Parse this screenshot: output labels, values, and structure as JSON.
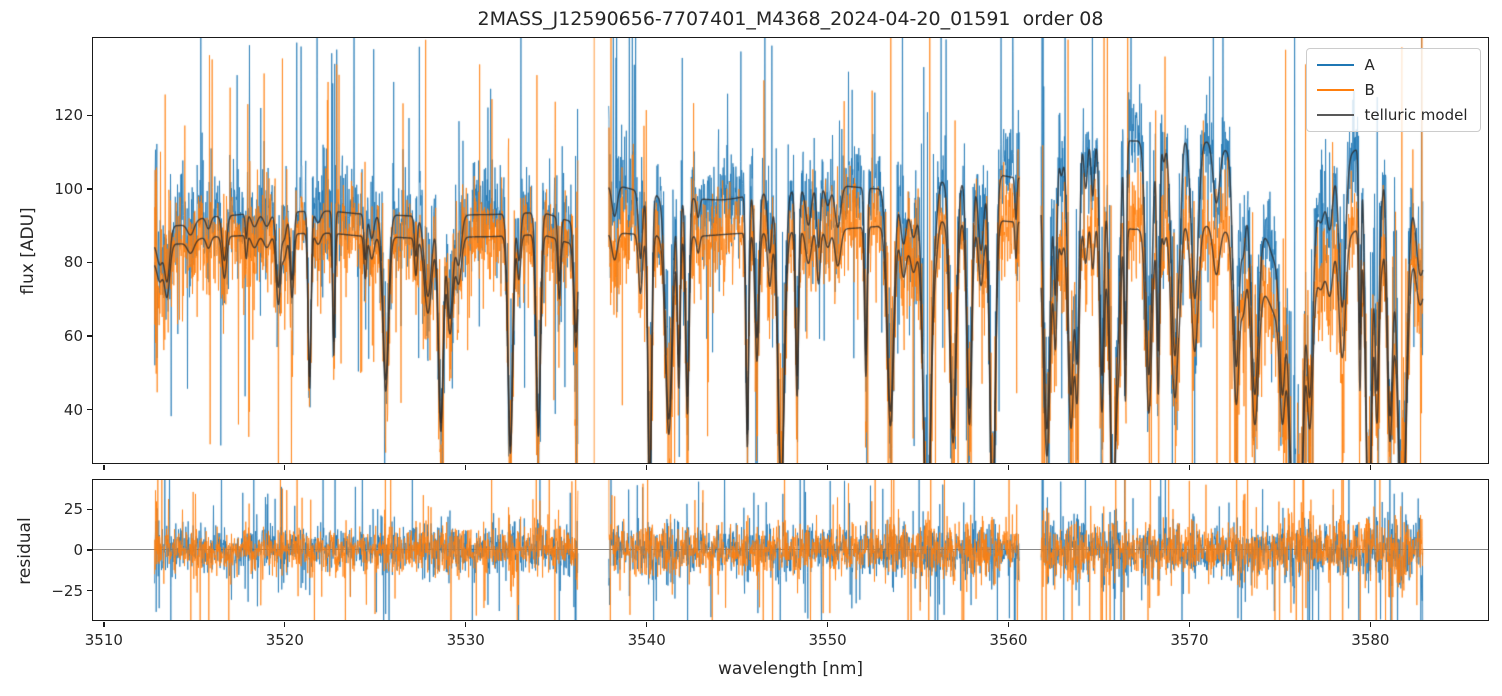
{
  "chart_data": {
    "type": "line",
    "title": "2MASS_J12590656-7707401_M4368_2024-04-20_01591  order 08",
    "xlabel": "wavelength [nm]",
    "xlim": [
      3509.4,
      3586.5
    ],
    "xticks": [
      3510,
      3520,
      3530,
      3540,
      3550,
      3560,
      3570,
      3580
    ],
    "panels": [
      {
        "id": "flux",
        "ylabel": "flux [ADU]",
        "ylim": [
          25.5,
          141
        ],
        "yticks": [
          40,
          60,
          80,
          100,
          120
        ],
        "zero_line": false
      },
      {
        "id": "residual",
        "ylabel": "residual",
        "ylim": [
          -43,
          43
        ],
        "yticks": [
          -25,
          0,
          25
        ],
        "zero_line": true
      }
    ],
    "legend": {
      "position": "upper right",
      "entries": [
        {
          "label": "A",
          "color": "#1f77b4"
        },
        {
          "label": "B",
          "color": "#ff7f0e"
        },
        {
          "label": "telluric model",
          "color": "#595959"
        }
      ]
    },
    "series": [
      {
        "name": "A",
        "kind": "noisy spectrum",
        "color": "#1f77b4",
        "opacity": 0.75
      },
      {
        "name": "B",
        "kind": "noisy spectrum",
        "color": "#ff7f0e",
        "opacity": 0.75
      },
      {
        "name": "telluric model",
        "kind": "smooth model, two traces (A-scaled and B-scaled)",
        "color": "#2a2a2a",
        "opacity": 0.8
      }
    ],
    "segments_nm": [
      [
        3512.8,
        3536.2
      ],
      [
        3537.9,
        3560.6
      ],
      [
        3561.8,
        3582.9
      ]
    ],
    "telluric_continuum_A": [
      [
        3512.8,
        85
      ],
      [
        3514,
        90
      ],
      [
        3516,
        92.5
      ],
      [
        3519,
        93.5
      ],
      [
        3522,
        94
      ],
      [
        3525,
        93
      ],
      [
        3528,
        92.5
      ],
      [
        3531,
        93
      ],
      [
        3534,
        93.5
      ],
      [
        3536.2,
        91
      ],
      [
        3537.9,
        101
      ],
      [
        3541,
        98
      ],
      [
        3544,
        97
      ],
      [
        3547,
        99
      ],
      [
        3550,
        101
      ],
      [
        3553,
        100
      ],
      [
        3556,
        102
      ],
      [
        3559,
        104
      ],
      [
        3560.6,
        103
      ],
      [
        3561.8,
        108
      ],
      [
        3563,
        116
      ],
      [
        3565,
        114
      ],
      [
        3567,
        113
      ],
      [
        3569,
        115
      ],
      [
        3571,
        113
      ],
      [
        3572.5,
        110
      ],
      [
        3574,
        88
      ],
      [
        3575,
        78
      ],
      [
        3576,
        86
      ],
      [
        3577,
        100
      ],
      [
        3578,
        108
      ],
      [
        3580,
        112
      ],
      [
        3582,
        105
      ],
      [
        3582.9,
        80
      ]
    ],
    "telluric_continuum_B": [
      [
        3512.8,
        80
      ],
      [
        3514,
        85
      ],
      [
        3516,
        87
      ],
      [
        3519,
        87.5
      ],
      [
        3522,
        88
      ],
      [
        3525,
        87
      ],
      [
        3528,
        86.5
      ],
      [
        3531,
        87
      ],
      [
        3534,
        87.5
      ],
      [
        3536.2,
        85
      ],
      [
        3537.9,
        88
      ],
      [
        3542,
        87
      ],
      [
        3546,
        88
      ],
      [
        3550,
        89
      ],
      [
        3554,
        90
      ],
      [
        3558,
        92
      ],
      [
        3560.6,
        91
      ],
      [
        3561.8,
        85
      ],
      [
        3563,
        92
      ],
      [
        3565,
        91
      ],
      [
        3567,
        89
      ],
      [
        3569,
        91
      ],
      [
        3571,
        90
      ],
      [
        3572.5,
        88
      ],
      [
        3574,
        72
      ],
      [
        3575,
        64
      ],
      [
        3576,
        70
      ],
      [
        3577,
        80
      ],
      [
        3578,
        86
      ],
      [
        3580,
        90
      ],
      [
        3582,
        87
      ],
      [
        3582.9,
        72
      ]
    ],
    "absorption_lines": [
      {
        "segment": 0,
        "depth_start": 0.35,
        "depth_end": 0.85,
        "gap_min": 0.3,
        "gap_scale": 0.5
      },
      {
        "segment": 1,
        "depth_start": 0.95,
        "depth_end": 0.95,
        "gap_min": 0.45,
        "gap_scale": 0.45
      },
      {
        "segment": 2,
        "depth_start": 1.0,
        "depth_end": 1.0,
        "gap_min": 0.28,
        "gap_scale": 0.3
      }
    ],
    "noise": {
      "sigma_adu": 6.5,
      "spike_prob": 0.045,
      "spike_min_adu": 12,
      "spike_max_adu": 50,
      "core_amplification": 2.5,
      "residual_sigma_adu": 6.5,
      "residual_core_amplification": 1.3,
      "edge_boost": 3.0
    },
    "stray_spikes": [
      {
        "x_nm": 3537.1,
        "series": "B"
      }
    ],
    "seed": 42,
    "colors": {
      "background": "#ffffff",
      "axis": "#1a1a1a",
      "zero_line": "#8a8a8a",
      "series_A": "#1f77b4",
      "series_B": "#ff7f0e",
      "telluric": "#2a2a2a",
      "text": "#262626"
    }
  }
}
